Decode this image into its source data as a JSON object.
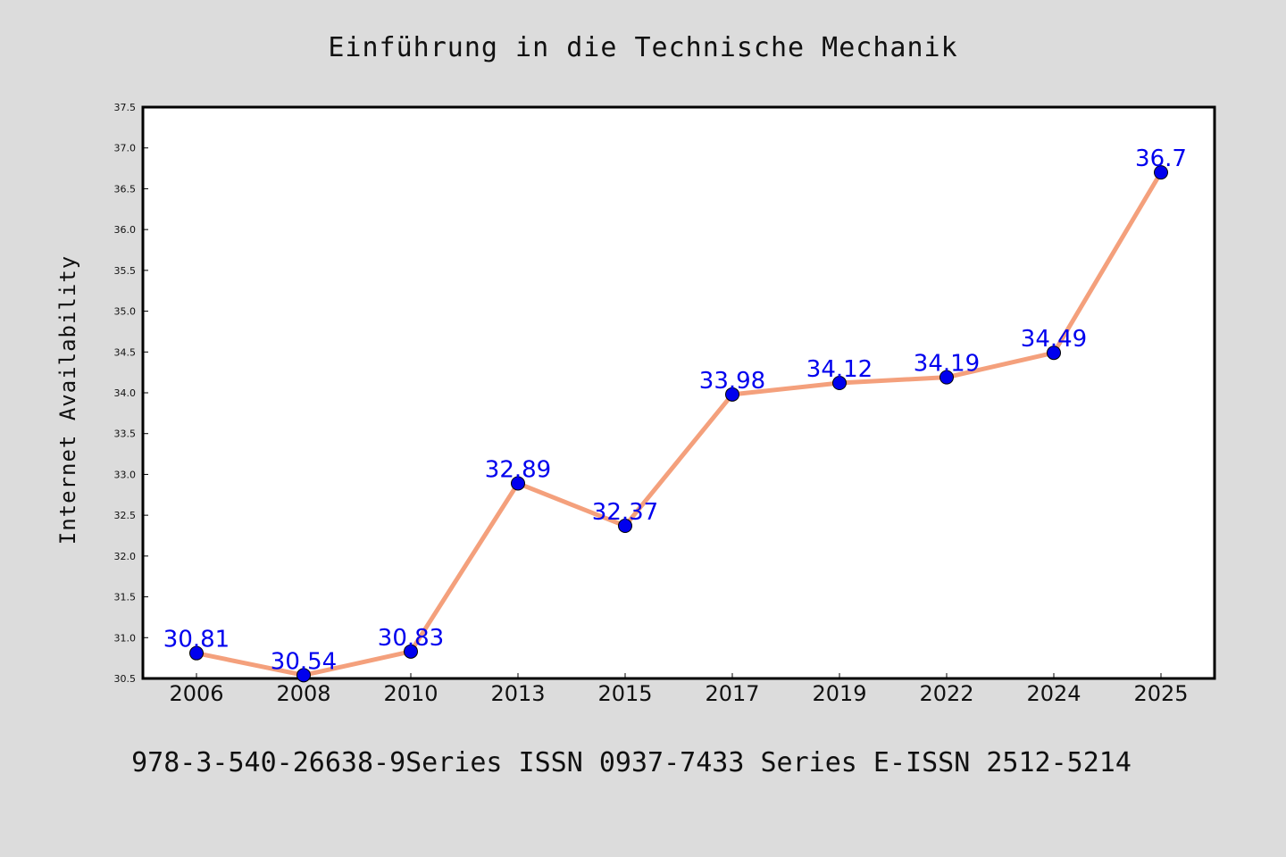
{
  "chart_data": {
    "type": "line",
    "title": "Einführung in die Technische Mechanik",
    "xlabel": "",
    "ylabel": "Internet Availability",
    "categories": [
      "2006",
      "2008",
      "2010",
      "2013",
      "2015",
      "2017",
      "2019",
      "2022",
      "2024",
      "2025"
    ],
    "series": [
      {
        "values": [
          30.81,
          30.54,
          30.83,
          32.89,
          32.37,
          33.98,
          34.12,
          34.19,
          34.49,
          36.7
        ],
        "labels": [
          "30.81",
          "30.54",
          "30.83",
          "32.89",
          "32.37",
          "33.98",
          "34.12",
          "34.19",
          "34.49",
          "36.7"
        ]
      }
    ],
    "ylim": [
      30.5,
      37.5
    ],
    "yticks": [
      "30.5",
      "31.0",
      "31.5",
      "32.0",
      "32.5",
      "33.0",
      "33.5",
      "34.0",
      "34.5",
      "35.0",
      "35.5",
      "36.0",
      "36.5",
      "37.0",
      "37.5"
    ],
    "grid": false,
    "colors": {
      "line": "#f4a07c",
      "marker": "#0000ee",
      "label": "#0000ee",
      "background": "#dcdcdc",
      "plot_area": "#ffffff"
    }
  },
  "footer": "978-3-540-26638-9Series ISSN 0937-7433 Series E-ISSN 2512-5214"
}
